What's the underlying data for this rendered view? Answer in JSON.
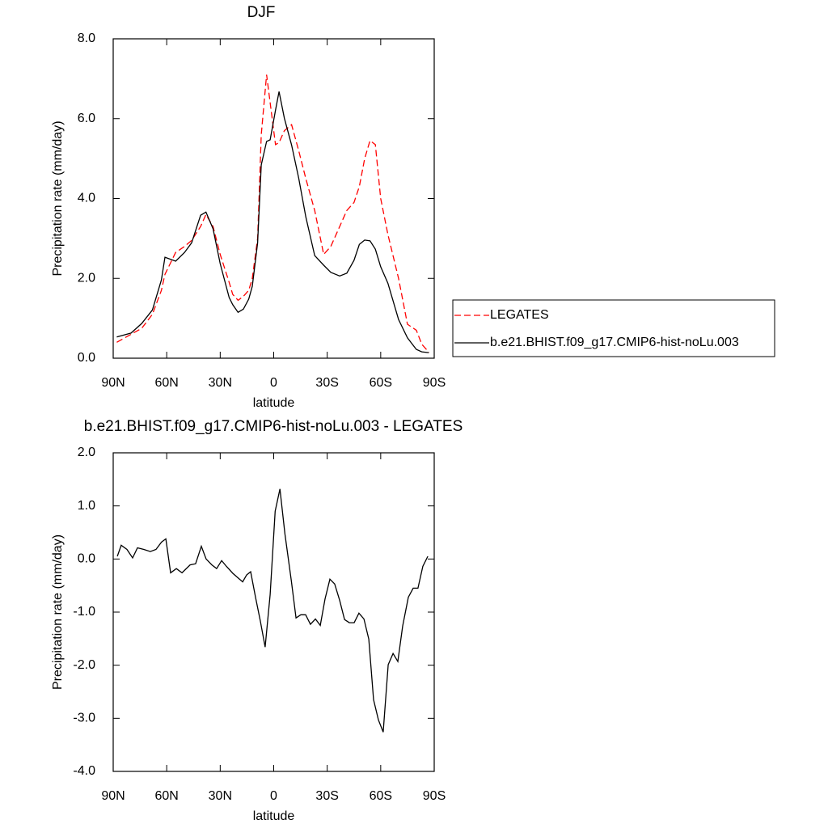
{
  "chart_data": [
    {
      "type": "line",
      "title": "DJF",
      "xlabel": "latitude",
      "ylabel": "Precipitation rate (mm/day)",
      "x": [
        88,
        80,
        74,
        68,
        63,
        61,
        55,
        50,
        46,
        41,
        38,
        34,
        30,
        25,
        23,
        20,
        17,
        14,
        12,
        9,
        7,
        4,
        2,
        -1,
        -3,
        -6,
        -10,
        -14,
        -18,
        -23,
        -28,
        -32,
        -37,
        -41,
        -45,
        -48,
        -51,
        -54,
        -57,
        -60,
        -64,
        -70,
        -75,
        -80,
        -83,
        -87
      ],
      "series": [
        {
          "name": "LEGATES",
          "color": "#ff0000",
          "line_style": "dashed",
          "values": [
            0.4,
            0.6,
            0.75,
            1.1,
            1.7,
            2.1,
            2.65,
            2.8,
            2.95,
            3.3,
            3.6,
            3.3,
            2.6,
            1.9,
            1.6,
            1.45,
            1.55,
            1.7,
            2.0,
            3.0,
            5.6,
            7.1,
            6.4,
            5.35,
            5.4,
            5.7,
            5.85,
            5.2,
            4.5,
            3.7,
            2.6,
            2.8,
            3.3,
            3.7,
            3.9,
            4.3,
            5.0,
            5.45,
            5.35,
            4.0,
            3.1,
            2.0,
            0.85,
            0.7,
            0.35,
            0.15
          ]
        },
        {
          "name": "b.e21.BHIST.f09_g17.CMIP6-hist-noLu.003",
          "color": "#000000",
          "line_style": "solid",
          "values": [
            0.53,
            0.63,
            0.87,
            1.21,
            1.96,
            2.53,
            2.43,
            2.65,
            2.89,
            3.58,
            3.66,
            3.24,
            2.37,
            1.52,
            1.34,
            1.15,
            1.23,
            1.48,
            1.8,
            2.89,
            4.84,
            5.43,
            5.47,
            6.21,
            6.68,
            6.01,
            5.34,
            4.51,
            3.54,
            2.57,
            2.33,
            2.15,
            2.06,
            2.13,
            2.45,
            2.85,
            2.96,
            2.94,
            2.73,
            2.29,
            1.88,
            0.97,
            0.51,
            0.22,
            0.16,
            0.14
          ]
        }
      ],
      "xlim": [
        90,
        -90
      ],
      "xticks": [
        {
          "value": 90,
          "label": "90N"
        },
        {
          "value": 60,
          "label": "60N"
        },
        {
          "value": 30,
          "label": "30N"
        },
        0,
        {
          "value": -30,
          "label": "30S"
        },
        {
          "value": -60,
          "label": "60S"
        },
        {
          "value": -90,
          "label": "90S"
        }
      ],
      "ylim": [
        0,
        8
      ],
      "yticks": [
        {
          "value": 0,
          "label": "0.0"
        },
        {
          "value": 2,
          "label": "2.0"
        },
        {
          "value": 4,
          "label": "4.0"
        },
        {
          "value": 6,
          "label": "6.0"
        },
        {
          "value": 8,
          "label": "8.0"
        }
      ],
      "legend": "right"
    },
    {
      "type": "line",
      "title": "b.e21.BHIST.f09_g17.CMIP6-hist-noLu.003 - LEGATES",
      "xlabel": "latitude",
      "ylabel": "Precipitation rate (mm/day)",
      "x": [
        87.7,
        85.5,
        82.3,
        79.1,
        76.4,
        72.8,
        69.2,
        66,
        62.9,
        60.5,
        57.8,
        54.6,
        51.4,
        46.9,
        43.8,
        40.6,
        37.9,
        34.7,
        32,
        29.2,
        26.5,
        22.9,
        20.2,
        17.4,
        15.2,
        12.9,
        10.2,
        7.5,
        4.8,
        2,
        -0.8,
        -3.5,
        -6.3,
        -9.9,
        -12.5,
        -15.2,
        -17.9,
        -20.6,
        -23.4,
        -26.1,
        -28.8,
        -31.5,
        -34.2,
        -37,
        -39.7,
        -42.4,
        -45.1,
        -47.8,
        -50.6,
        -53.3,
        -56,
        -58.7,
        -61.4,
        -64.2,
        -66.9,
        -69.6,
        -72.3,
        -75.5,
        -78.2,
        -80.9,
        -83.6,
        -86.4
      ],
      "series": [
        {
          "color": "#000000",
          "line_style": "solid",
          "values": [
            0.05,
            0.26,
            0.18,
            0.02,
            0.21,
            0.18,
            0.14,
            0.18,
            0.32,
            0.38,
            -0.26,
            -0.18,
            -0.26,
            -0.11,
            -0.09,
            0.24,
            0,
            -0.11,
            -0.18,
            -0.03,
            -0.14,
            -0.27,
            -0.35,
            -0.43,
            -0.3,
            -0.24,
            -0.72,
            -1.17,
            -1.66,
            -0.67,
            0.9,
            1.32,
            0.47,
            -0.41,
            -1.11,
            -1.05,
            -1.05,
            -1.23,
            -1.13,
            -1.25,
            -0.75,
            -0.38,
            -0.47,
            -0.78,
            -1.14,
            -1.2,
            -1.2,
            -1.02,
            -1.13,
            -1.51,
            -2.65,
            -3.03,
            -3.26,
            -1.99,
            -1.78,
            -1.93,
            -1.26,
            -0.72,
            -0.55,
            -0.55,
            -0.14,
            0.05
          ]
        }
      ],
      "xlim": [
        90,
        -90
      ],
      "xticks": [
        {
          "value": 90,
          "label": "90N"
        },
        {
          "value": 60,
          "label": "60N"
        },
        {
          "value": 30,
          "label": "30N"
        },
        0,
        {
          "value": -30,
          "label": "30S"
        },
        {
          "value": -60,
          "label": "60S"
        },
        {
          "value": -90,
          "label": "90S"
        }
      ],
      "ylim": [
        -4,
        2
      ],
      "yticks": [
        {
          "value": -4,
          "label": "-4.0"
        },
        {
          "value": -3,
          "label": "-3.0"
        },
        {
          "value": -2,
          "label": "-2.0"
        },
        {
          "value": -1,
          "label": "-1.0"
        },
        {
          "value": 0,
          "label": "0.0"
        },
        {
          "value": 1,
          "label": "1.0"
        },
        {
          "value": 2,
          "label": "2.0"
        }
      ]
    }
  ]
}
